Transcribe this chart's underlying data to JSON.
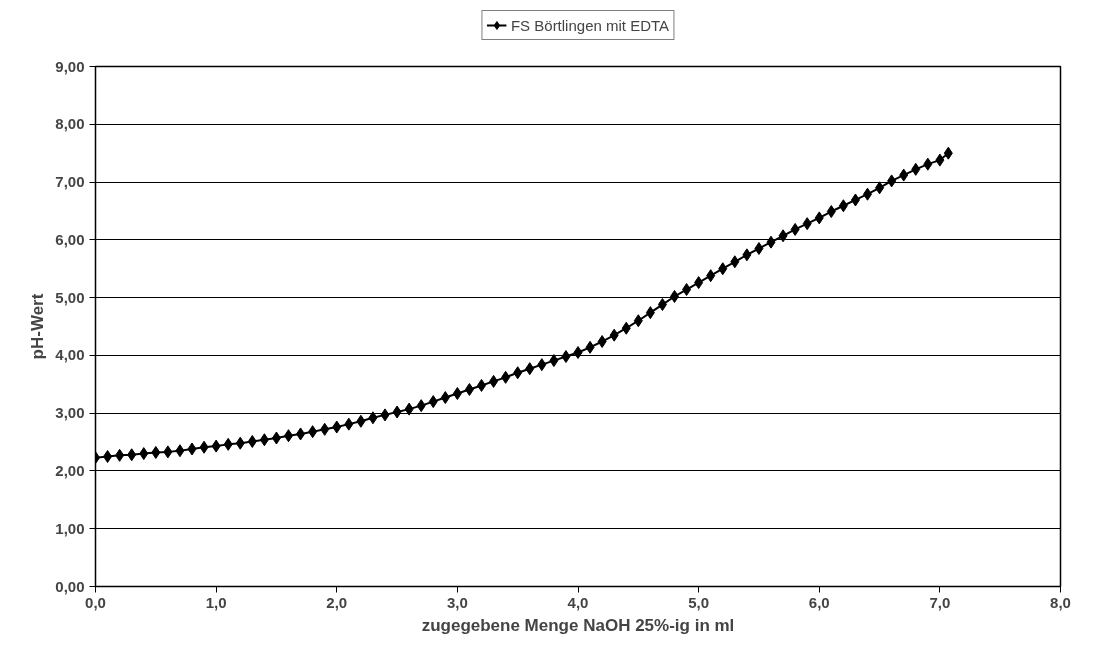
{
  "chart_data": {
    "type": "line",
    "xlabel": "zugegebene Menge NaOH 25%-ig in ml",
    "ylabel": "pH-Wert",
    "xlim": [
      0,
      8
    ],
    "xticks": [
      {
        "value": 0,
        "label": "0,0"
      },
      {
        "value": 1,
        "label": "1,0"
      },
      {
        "value": 2,
        "label": "2,0"
      },
      {
        "value": 3,
        "label": "3,0"
      },
      {
        "value": 4,
        "label": "4,0"
      },
      {
        "value": 5,
        "label": "5,0"
      },
      {
        "value": 6,
        "label": "6,0"
      },
      {
        "value": 7,
        "label": "7,0"
      },
      {
        "value": 8,
        "label": "8,0"
      }
    ],
    "ylim": [
      0,
      9
    ],
    "yticks": [
      {
        "value": 0,
        "label": "0,00"
      },
      {
        "value": 1,
        "label": "1,00"
      },
      {
        "value": 2,
        "label": "2,00"
      },
      {
        "value": 3,
        "label": "3,00"
      },
      {
        "value": 4,
        "label": "4,00"
      },
      {
        "value": 5,
        "label": "5,00"
      },
      {
        "value": 6,
        "label": "6,00"
      },
      {
        "value": 7,
        "label": "7,00"
      },
      {
        "value": 8,
        "label": "8,00"
      },
      {
        "value": 9,
        "label": "9,00"
      }
    ],
    "grid": "y",
    "legend": "top",
    "marker": "diamond",
    "line_style": "solid",
    "x": [
      0.0,
      0.1,
      0.2,
      0.3,
      0.4,
      0.5,
      0.6,
      0.7,
      0.8,
      0.9,
      1.0,
      1.1,
      1.2,
      1.3,
      1.4,
      1.5,
      1.6,
      1.7,
      1.8,
      1.9,
      2.0,
      2.1,
      2.2,
      2.3,
      2.4,
      2.5,
      2.6,
      2.7,
      2.8,
      2.9,
      3.0,
      3.1,
      3.2,
      3.3,
      3.4,
      3.5,
      3.6,
      3.7,
      3.8,
      3.9,
      4.0,
      4.1,
      4.2,
      4.3,
      4.4,
      4.5,
      4.6,
      4.7,
      4.8,
      4.9,
      5.0,
      5.1,
      5.2,
      5.3,
      5.4,
      5.5,
      5.6,
      5.7,
      5.8,
      5.9,
      6.0,
      6.1,
      6.2,
      6.3,
      6.4,
      6.5,
      6.6,
      6.7,
      6.8,
      6.9,
      7.0,
      7.07
    ],
    "series": [
      {
        "name": "FS Börtlingen mit EDTA",
        "color": "#000000",
        "values": [
          2.23,
          2.25,
          2.27,
          2.28,
          2.3,
          2.32,
          2.33,
          2.35,
          2.38,
          2.41,
          2.43,
          2.46,
          2.48,
          2.51,
          2.54,
          2.57,
          2.61,
          2.64,
          2.68,
          2.72,
          2.76,
          2.81,
          2.86,
          2.92,
          2.97,
          3.02,
          3.07,
          3.13,
          3.2,
          3.27,
          3.34,
          3.41,
          3.48,
          3.55,
          3.62,
          3.7,
          3.77,
          3.84,
          3.91,
          3.98,
          4.05,
          4.14,
          4.24,
          4.35,
          4.47,
          4.6,
          4.74,
          4.88,
          5.02,
          5.14,
          5.26,
          5.38,
          5.5,
          5.62,
          5.74,
          5.85,
          5.96,
          6.07,
          6.18,
          6.28,
          6.38,
          6.49,
          6.59,
          6.69,
          6.79,
          6.9,
          7.02,
          7.12,
          7.22,
          7.31,
          7.38,
          7.5
        ]
      }
    ]
  }
}
